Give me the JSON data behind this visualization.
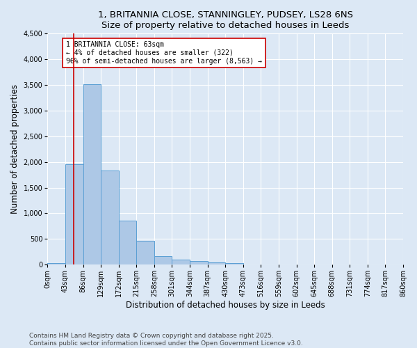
{
  "title_line1": "1, BRITANNIA CLOSE, STANNINGLEY, PUDSEY, LS28 6NS",
  "title_line2": "Size of property relative to detached houses in Leeds",
  "xlabel": "Distribution of detached houses by size in Leeds",
  "ylabel": "Number of detached properties",
  "footnote": "Contains HM Land Registry data © Crown copyright and database right 2025.\nContains public sector information licensed under the Open Government Licence v3.0.",
  "bin_edges": [
    0,
    43,
    86,
    129,
    172,
    215,
    258,
    301,
    344,
    387,
    430,
    473,
    516,
    559,
    602,
    645,
    688,
    731,
    774,
    817,
    860
  ],
  "bar_heights": [
    27,
    1950,
    3520,
    1830,
    860,
    460,
    165,
    100,
    70,
    45,
    30,
    0,
    0,
    0,
    0,
    0,
    0,
    0,
    0,
    0
  ],
  "bar_color": "#adc8e6",
  "bar_edge_color": "#5a9fd4",
  "property_size": 63,
  "red_line_color": "#cc0000",
  "annotation_text": "1 BRITANNIA CLOSE: 63sqm\n← 4% of detached houses are smaller (322)\n96% of semi-detached houses are larger (8,563) →",
  "annotation_box_color": "#ffffff",
  "annotation_box_edge_color": "#cc0000",
  "ylim": [
    0,
    4500
  ],
  "yticks": [
    0,
    500,
    1000,
    1500,
    2000,
    2500,
    3000,
    3500,
    4000,
    4500
  ],
  "background_color": "#dce8f5",
  "grid_color": "#ffffff",
  "title_fontsize": 9.5,
  "axis_label_fontsize": 8.5,
  "tick_fontsize": 7,
  "annotation_fontsize": 7,
  "footnote_fontsize": 6.5
}
